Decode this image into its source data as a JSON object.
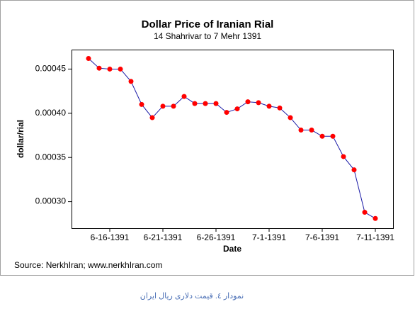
{
  "chart_data": {
    "type": "line",
    "title": "Dollar Price of Iranian Rial",
    "subtitle": "14 Shahrivar to 7 Mehr 1391",
    "x_label": "Date",
    "y_label": "dollar/rial",
    "source": "Source: NerkhIran; www.nerkhIran.com",
    "categories": [
      null,
      null,
      "6-16-1391",
      null,
      null,
      null,
      null,
      "6-21-1391",
      null,
      null,
      null,
      null,
      "6-26-1391",
      null,
      null,
      null,
      null,
      "7-1-1391",
      null,
      null,
      null,
      null,
      "7-6-1391",
      null,
      null,
      null,
      null,
      "7-11-1391"
    ],
    "series": [
      {
        "name": "dollar/rial",
        "color": "#1a1aa6",
        "marker_color": "#ff0000",
        "values": [
          0.000462,
          0.000451,
          0.00045,
          0.00045,
          0.000436,
          0.00041,
          0.000395,
          0.000408,
          0.000408,
          0.000419,
          0.000411,
          0.000411,
          0.000411,
          0.000401,
          0.000405,
          0.000413,
          0.000412,
          0.000408,
          0.000406,
          0.000395,
          0.000381,
          0.000381,
          0.000374,
          0.000374,
          0.000351,
          0.000336,
          0.000288,
          0.000281
        ]
      }
    ],
    "ylim": [
      0.00027,
      0.000472
    ],
    "yticks": [
      {
        "value": 0.0003,
        "label": "0.00030"
      },
      0.00035,
      {
        "value": 0.0004,
        "label": "0.00040"
      },
      0.00045
    ],
    "grid": false
  },
  "caption": "نمودار ٤. قیمت دلاری ریال ایران"
}
